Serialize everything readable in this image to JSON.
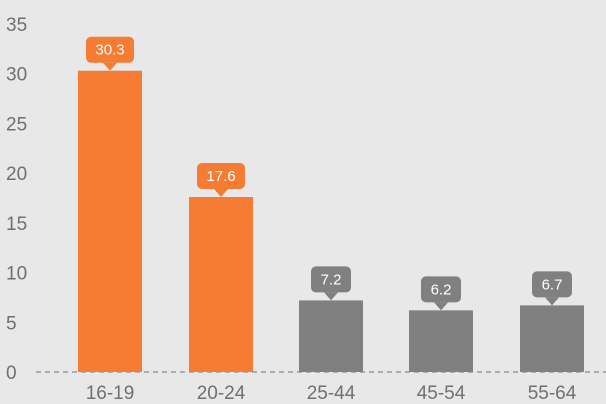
{
  "chart_data": {
    "type": "bar",
    "categories": [
      "16-19",
      "20-24",
      "25-44",
      "45-54",
      "55-64"
    ],
    "values": [
      30.3,
      17.6,
      7.2,
      6.2,
      6.7
    ],
    "value_labels": [
      "30.3",
      "17.6",
      "7.2",
      "6.2",
      "6.7"
    ],
    "ylim": [
      0,
      35
    ],
    "y_ticks": [
      0,
      5,
      10,
      15,
      20,
      25,
      30,
      35
    ],
    "y_tick_labels": [
      "0",
      "5",
      "10",
      "15",
      "20",
      "25",
      "30",
      "35"
    ],
    "grid": false,
    "legend": "none",
    "baseline": "dashed",
    "colors": {
      "highlight": "#f57c32",
      "default": "#808080",
      "axis_text": "#707070",
      "baseline": "#9a9a9a",
      "background": "#e8e8e8"
    },
    "bar_colors": [
      "highlight",
      "highlight",
      "default",
      "default",
      "default"
    ]
  }
}
